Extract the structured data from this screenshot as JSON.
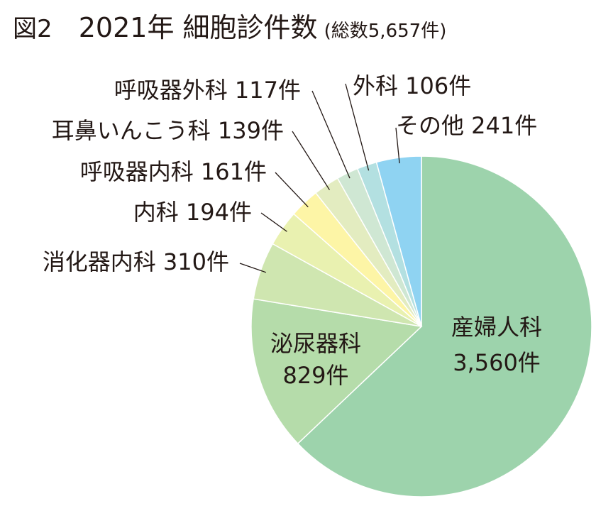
{
  "figure_label": "図2",
  "title": "2021年 細胞診件数",
  "subtitle": "(総数5,657件)",
  "chart_data": {
    "type": "pie",
    "title": "2021年 細胞診件数",
    "subtitle": "(総数5,657件)",
    "total": 5657,
    "unit": "件",
    "start": "12 o'clock",
    "direction": "clockwise",
    "slices": [
      {
        "label": "産婦人科",
        "value": 3560,
        "value_text": "3,560件",
        "color": "#9dd3ac"
      },
      {
        "label": "泌尿器科",
        "value": 829,
        "value_text": "829件",
        "color": "#b5dcaa"
      },
      {
        "label": "消化器内科",
        "value": 310,
        "value_text": "310件",
        "color": "#cfe6b0"
      },
      {
        "label": "内科",
        "value": 194,
        "value_text": "194件",
        "color": "#e9f1b0"
      },
      {
        "label": "呼吸器内科",
        "value": 161,
        "value_text": "161件",
        "color": "#fdf5a6"
      },
      {
        "label": "耳鼻いんこう科",
        "value": 139,
        "value_text": "139件",
        "color": "#e3ecc0"
      },
      {
        "label": "呼吸器外科",
        "value": 117,
        "value_text": "117件",
        "color": "#cfe7d3"
      },
      {
        "label": "外科",
        "value": 106,
        "value_text": "106件",
        "color": "#b3e0e1"
      },
      {
        "label": "その他",
        "value": 241,
        "value_text": "241件",
        "color": "#8fd3f2"
      }
    ],
    "leader_color": "#231815",
    "border_color": "#ffffff"
  }
}
